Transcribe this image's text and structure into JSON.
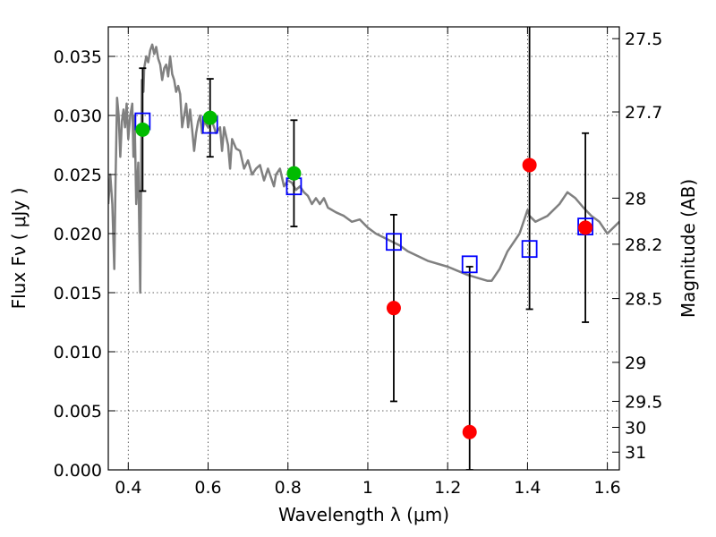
{
  "chart_data": {
    "type": "line",
    "xlabel": "Wavelength  λ (μm)",
    "ylabel": "Flux  Fν  ( μJy )",
    "y2label": "Magnitude (AB)",
    "xlim": [
      0.35,
      1.63
    ],
    "ylim": [
      0.0,
      0.0375
    ],
    "x_ticks": [
      0.4,
      0.6,
      0.8,
      1.0,
      1.2,
      1.4,
      1.6
    ],
    "x_tick_labels": [
      "0.4",
      "0.6",
      "0.8",
      "1",
      "1.2",
      "1.4",
      "1.6"
    ],
    "y_ticks": [
      0.0,
      0.005,
      0.01,
      0.015,
      0.02,
      0.025,
      0.03,
      0.035
    ],
    "y_tick_labels": [
      "0.000",
      "0.005",
      "0.010",
      "0.015",
      "0.020",
      "0.025",
      "0.030",
      "0.035"
    ],
    "y2_ticks": [
      {
        "label": "27.5",
        "flux": 0.0365
      },
      {
        "label": "27.7",
        "flux": 0.0303
      },
      {
        "label": "28",
        "flux": 0.023
      },
      {
        "label": "28.2",
        "flux": 0.0191
      },
      {
        "label": "28.5",
        "flux": 0.0145
      },
      {
        "label": "29",
        "flux": 0.0091
      },
      {
        "label": "29.5",
        "flux": 0.0058
      },
      {
        "label": "30",
        "flux": 0.0036
      },
      {
        "label": "31",
        "flux": 0.0015
      }
    ],
    "grid": true,
    "colors": {
      "sed": "#808080",
      "model_box": "#0000ff",
      "detected": "#00bb00",
      "nondetected": "#ff0000",
      "errorbar": "#000000"
    },
    "series": [
      {
        "type": "line",
        "x": [
          0.35,
          0.355,
          0.36,
          0.365,
          0.368,
          0.372,
          0.376,
          0.38,
          0.384,
          0.388,
          0.392,
          0.396,
          0.4,
          0.405,
          0.41,
          0.413,
          0.416,
          0.42,
          0.425,
          0.43,
          0.434,
          0.438,
          0.44,
          0.445,
          0.45,
          0.455,
          0.46,
          0.465,
          0.47,
          0.475,
          0.48,
          0.485,
          0.49,
          0.495,
          0.5,
          0.505,
          0.51,
          0.515,
          0.52,
          0.525,
          0.53,
          0.535,
          0.54,
          0.545,
          0.55,
          0.555,
          0.56,
          0.565,
          0.57,
          0.575,
          0.58,
          0.585,
          0.59,
          0.6,
          0.61,
          0.62,
          0.63,
          0.635,
          0.64,
          0.65,
          0.655,
          0.66,
          0.67,
          0.68,
          0.69,
          0.7,
          0.71,
          0.72,
          0.73,
          0.74,
          0.75,
          0.76,
          0.765,
          0.77,
          0.78,
          0.79,
          0.8,
          0.81,
          0.82,
          0.83,
          0.84,
          0.85,
          0.86,
          0.87,
          0.88,
          0.89,
          0.9,
          0.92,
          0.94,
          0.96,
          0.98,
          1.0,
          1.02,
          1.05,
          1.08,
          1.1,
          1.15,
          1.2,
          1.25,
          1.28,
          1.3,
          1.31,
          1.33,
          1.35,
          1.38,
          1.4,
          1.405,
          1.42,
          1.45,
          1.48,
          1.5,
          1.52,
          1.54,
          1.56,
          1.58,
          1.6,
          1.63
        ],
        "y": [
          0.0225,
          0.025,
          0.0225,
          0.017,
          0.024,
          0.0315,
          0.03,
          0.0265,
          0.0295,
          0.0305,
          0.029,
          0.031,
          0.028,
          0.03,
          0.031,
          0.0265,
          0.03,
          0.0225,
          0.026,
          0.015,
          0.033,
          0.032,
          0.034,
          0.035,
          0.0345,
          0.0355,
          0.036,
          0.0352,
          0.0358,
          0.0348,
          0.0343,
          0.033,
          0.034,
          0.0343,
          0.0333,
          0.035,
          0.0335,
          0.033,
          0.032,
          0.0325,
          0.0318,
          0.029,
          0.03,
          0.031,
          0.029,
          0.0305,
          0.0288,
          0.027,
          0.0285,
          0.0295,
          0.03,
          0.0285,
          0.0295,
          0.029,
          0.0295,
          0.0285,
          0.029,
          0.027,
          0.029,
          0.0275,
          0.0255,
          0.028,
          0.0272,
          0.027,
          0.0255,
          0.0262,
          0.025,
          0.0255,
          0.0258,
          0.0245,
          0.0255,
          0.0245,
          0.024,
          0.025,
          0.0255,
          0.024,
          0.0245,
          0.0243,
          0.0237,
          0.024,
          0.0235,
          0.0232,
          0.0225,
          0.023,
          0.0225,
          0.023,
          0.0222,
          0.0218,
          0.0215,
          0.021,
          0.0212,
          0.0205,
          0.02,
          0.0195,
          0.019,
          0.0185,
          0.0177,
          0.0172,
          0.0165,
          0.0162,
          0.016,
          0.016,
          0.017,
          0.0185,
          0.02,
          0.022,
          0.0215,
          0.021,
          0.0215,
          0.0225,
          0.0235,
          0.023,
          0.0222,
          0.0215,
          0.021,
          0.02,
          0.021
        ]
      },
      {
        "type": "box",
        "x": [
          0.436,
          0.605,
          0.815,
          1.065,
          1.255,
          1.405,
          1.545
        ],
        "y": [
          0.0295,
          0.0292,
          0.024,
          0.0193,
          0.0174,
          0.0187,
          0.0206
        ]
      },
      {
        "type": "errorbar",
        "x": [
          0.436,
          0.605,
          0.815,
          1.065,
          1.255,
          1.405,
          1.545
        ],
        "y": [
          0.0288,
          0.0298,
          0.0251,
          0.0137,
          0.0032,
          0.0258,
          0.0205
        ],
        "yerr": [
          0.0052,
          0.0033,
          0.0045,
          0.0079,
          0.014,
          0.0122,
          0.008
        ],
        "status": [
          "detected",
          "detected",
          "detected",
          "nondetected",
          "nondetected",
          "nondetected",
          "nondetected"
        ]
      }
    ]
  }
}
